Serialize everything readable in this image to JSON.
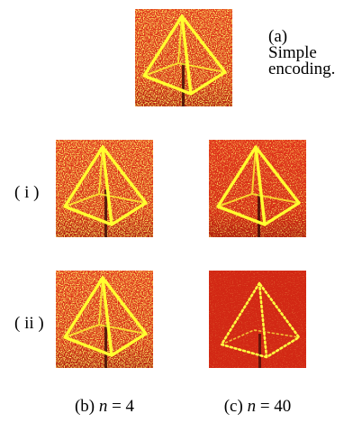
{
  "panel_a": {
    "label": "(a)",
    "caption_lines": [
      "Simple",
      "encoding."
    ]
  },
  "rows": [
    "( i )",
    "( ii )"
  ],
  "columns": [
    {
      "prefix": "(b) ",
      "variable": "n",
      "suffix": " = 4"
    },
    {
      "prefix": "(c) ",
      "variable": "n",
      "suffix": " = 40"
    }
  ]
}
